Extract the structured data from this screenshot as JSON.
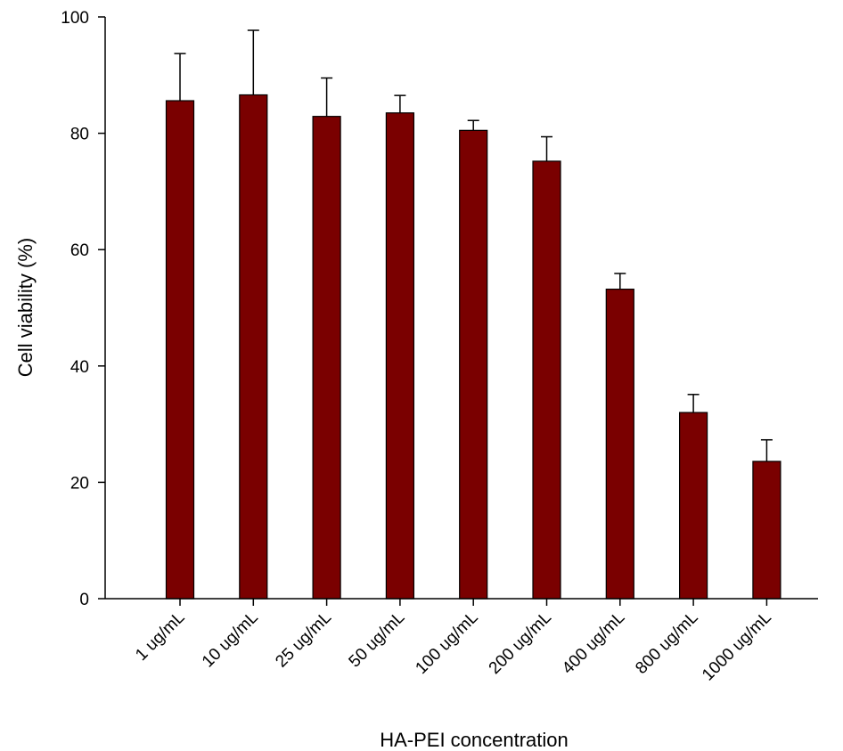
{
  "chart_data": {
    "type": "bar",
    "title": "",
    "xlabel": "HA-PEI concentration",
    "ylabel": "Cell viability (%)",
    "ylim": [
      0,
      100
    ],
    "yticks": [
      0,
      20,
      40,
      60,
      80,
      100
    ],
    "grid": false,
    "legend": "none",
    "categories": [
      "1 ug/mL",
      "10 ug/mL",
      "25 ug/mL",
      "50 ug/mL",
      "100 ug/mL",
      "200 ug/mL",
      "400 ug/mL",
      "800 ug/mL",
      "1000 ug/mL"
    ],
    "series": [
      {
        "values": [
          85.6,
          86.6,
          82.9,
          83.5,
          80.5,
          75.2,
          53.2,
          32.0,
          23.6
        ],
        "error_upper": [
          8.1,
          11.1,
          6.6,
          3.0,
          1.7,
          4.2,
          2.7,
          3.1,
          3.7
        ],
        "color": "#7a0000"
      }
    ]
  }
}
